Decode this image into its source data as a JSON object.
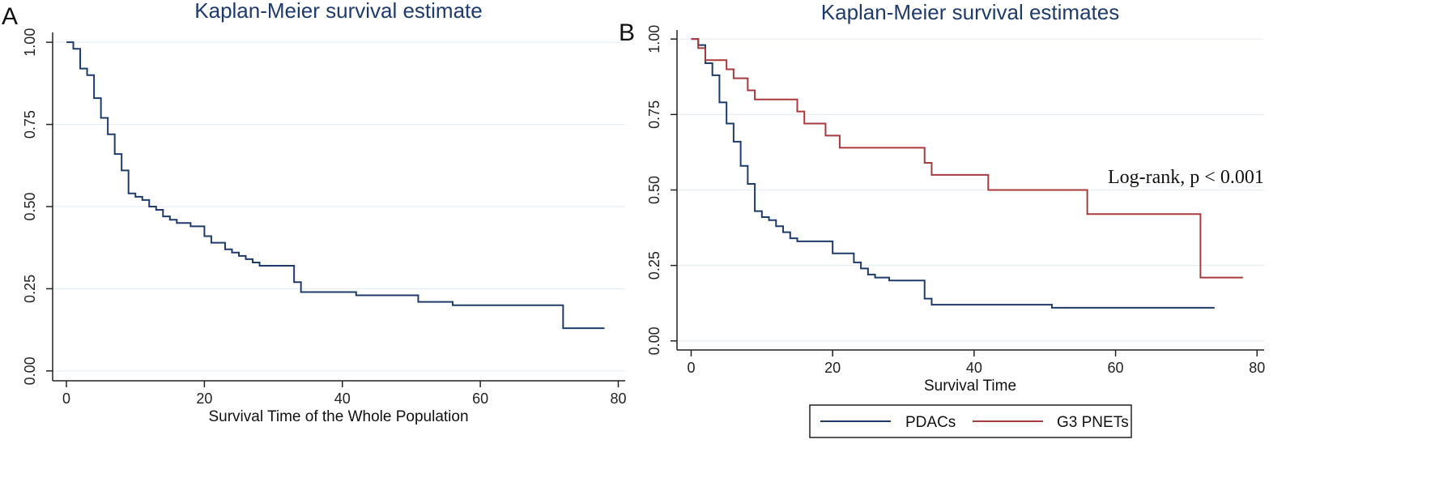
{
  "chart_data": [
    {
      "type": "line",
      "panel_label": "A",
      "title": "Kaplan-Meier survival estimate",
      "xlabel": "Survival Time of the Whole Population",
      "ylabel": "",
      "xlim": [
        -2,
        81
      ],
      "ylim": [
        -0.03,
        1.03
      ],
      "xticks": [
        "0",
        "20",
        "40",
        "60",
        "80"
      ],
      "yticks": [
        "0.00",
        "0.25",
        "0.50",
        "0.75",
        "1.00"
      ],
      "grid": true,
      "step": true,
      "series": [
        {
          "name": "Whole Population",
          "color": "#1f3b6b",
          "x": [
            0,
            1,
            2,
            3,
            4,
            5,
            6,
            7,
            8,
            9,
            10,
            11,
            12,
            13,
            14,
            15,
            16,
            18,
            20,
            21,
            23,
            24,
            25,
            26,
            27,
            28,
            33,
            34,
            42,
            51,
            56,
            72,
            78
          ],
          "y": [
            1.0,
            0.98,
            0.92,
            0.9,
            0.83,
            0.77,
            0.72,
            0.66,
            0.61,
            0.54,
            0.53,
            0.52,
            0.5,
            0.49,
            0.47,
            0.46,
            0.45,
            0.44,
            0.41,
            0.39,
            0.37,
            0.36,
            0.35,
            0.34,
            0.33,
            0.32,
            0.27,
            0.24,
            0.23,
            0.21,
            0.2,
            0.13,
            0.13
          ]
        }
      ]
    },
    {
      "type": "line",
      "panel_label": "B",
      "title": "Kaplan-Meier survival estimates",
      "xlabel": "Survival Time",
      "ylabel": "",
      "xlim": [
        -2,
        81
      ],
      "ylim": [
        -0.03,
        1.03
      ],
      "xticks": [
        "0",
        "20",
        "40",
        "60",
        "80"
      ],
      "yticks": [
        "0.00",
        "0.25",
        "0.50",
        "0.75",
        "1.00"
      ],
      "grid": true,
      "step": true,
      "legend_position": "bottom",
      "annotation": "Log-rank, p < 0.001",
      "series": [
        {
          "name": "PDACs",
          "color": "#1f3b6b",
          "x": [
            0,
            1,
            2,
            3,
            4,
            5,
            6,
            7,
            8,
            9,
            10,
            11,
            12,
            13,
            14,
            15,
            20,
            23,
            24,
            25,
            26,
            28,
            33,
            34,
            51,
            74
          ],
          "y": [
            1.0,
            0.98,
            0.92,
            0.88,
            0.79,
            0.72,
            0.66,
            0.58,
            0.52,
            0.43,
            0.41,
            0.4,
            0.38,
            0.36,
            0.34,
            0.33,
            0.29,
            0.26,
            0.24,
            0.22,
            0.21,
            0.2,
            0.14,
            0.12,
            0.11,
            0.11
          ]
        },
        {
          "name": "G3 PNETs",
          "color": "#a83a3e",
          "x": [
            0,
            1,
            2,
            5,
            6,
            8,
            9,
            15,
            16,
            19,
            21,
            33,
            34,
            42,
            56,
            72,
            78
          ],
          "y": [
            1.0,
            0.97,
            0.93,
            0.9,
            0.87,
            0.83,
            0.8,
            0.76,
            0.72,
            0.68,
            0.64,
            0.59,
            0.55,
            0.5,
            0.42,
            0.21,
            0.21
          ]
        }
      ]
    }
  ]
}
